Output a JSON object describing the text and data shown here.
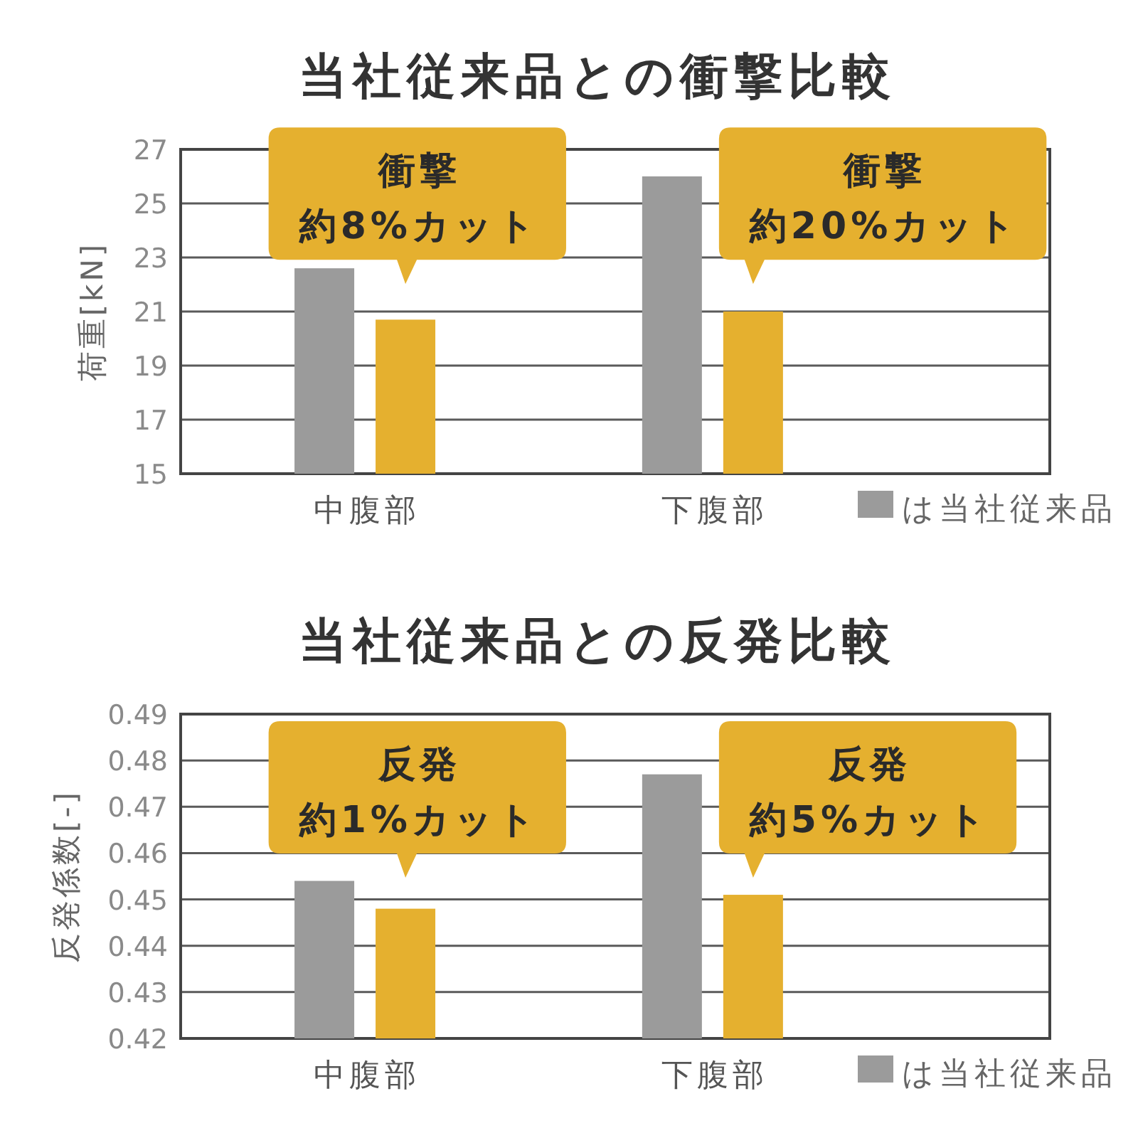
{
  "chart_data": [
    {
      "type": "bar",
      "title": "当社従来品との衝撃比較",
      "ylabel": "荷重[kN]",
      "categories": [
        "中腹部",
        "下腹部"
      ],
      "series": [
        {
          "name": "は当社従来品",
          "color": "#9b9b9b",
          "values": [
            22.6,
            26.0
          ]
        },
        {
          "color": "#e5b02f",
          "values": [
            20.7,
            21.0
          ]
        }
      ],
      "ylim": [
        15,
        27
      ],
      "yticks": [
        15,
        17,
        19,
        21,
        23,
        25,
        27
      ],
      "grid": "y",
      "legend": "bottom right",
      "annotations": [
        "衝撃約8%カット",
        "衝撃約20%カット"
      ]
    },
    {
      "type": "bar",
      "title": "当社従来品との反発比較",
      "ylabel": "反発係数[-]",
      "categories": [
        "中腹部",
        "下腹部"
      ],
      "series": [
        {
          "name": "は当社従来品",
          "color": "#9b9b9b",
          "values": [
            0.454,
            0.477
          ]
        },
        {
          "color": "#e5b02f",
          "values": [
            0.448,
            0.451
          ]
        }
      ],
      "ylim": [
        0.42,
        0.49
      ],
      "yticks": [
        0.42,
        0.43,
        0.44,
        0.45,
        0.46,
        0.47,
        0.48,
        0.49
      ],
      "grid": "y",
      "legend": "bottom right",
      "annotations": [
        "反発約1%カット",
        "反発約5%カット"
      ]
    }
  ]
}
